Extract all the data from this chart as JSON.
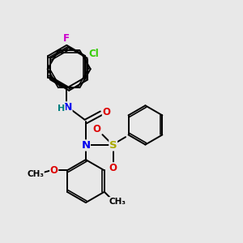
{
  "bg_color": "#e8e8e8",
  "bond_color": "#000000",
  "bond_width": 1.4,
  "figsize": [
    3.0,
    3.0
  ],
  "dpi": 100,
  "colors": {
    "F": "#cc00cc",
    "Cl": "#33cc00",
    "NH": "#0000ee",
    "H": "#008080",
    "O": "#dd0000",
    "N": "#0000ee",
    "S": "#aaaa00",
    "C": "#000000"
  },
  "xlim": [
    0,
    10
  ],
  "ylim": [
    0,
    10
  ]
}
